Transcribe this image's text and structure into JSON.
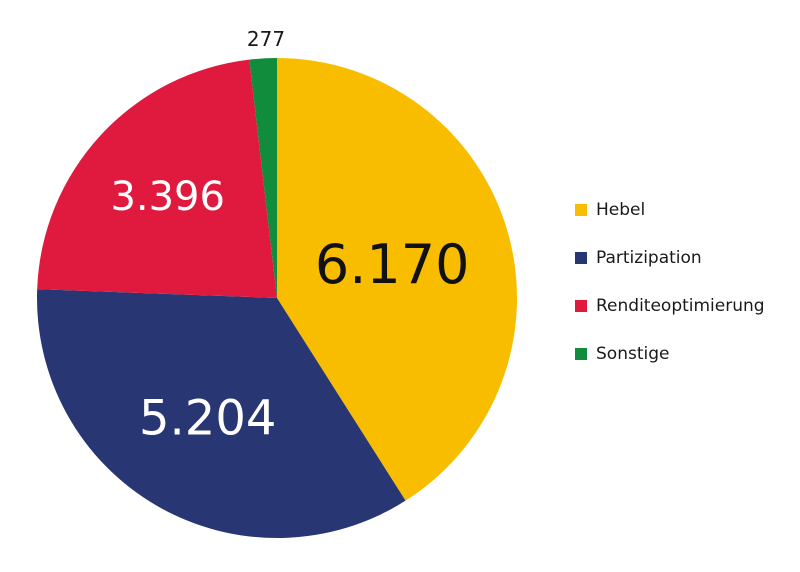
{
  "chart_data": {
    "type": "pie",
    "categories": [
      "Hebel",
      "Partizipation",
      "Renditeoptimierung",
      "Sonstige"
    ],
    "values": [
      6170,
      5204,
      3396,
      277
    ],
    "value_labels": [
      "6.170",
      "5.204",
      "3.396",
      "277"
    ],
    "colors": [
      "#f9bd00",
      "#283673",
      "#e0193f",
      "#118c3c"
    ],
    "legend_placement": "right",
    "start_angle": "top",
    "direction": "clockwise"
  }
}
